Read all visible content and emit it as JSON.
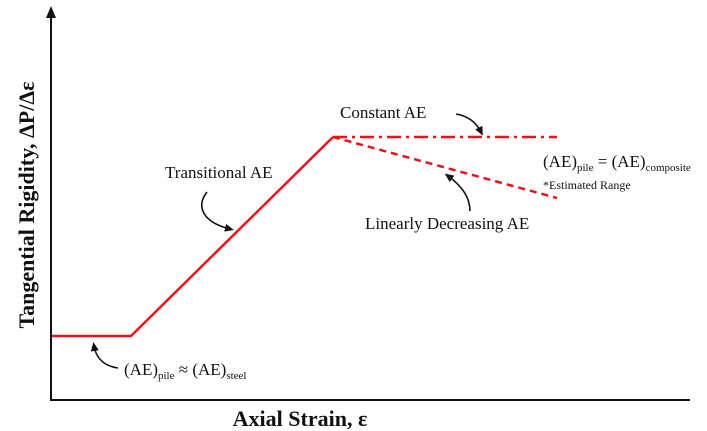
{
  "axes": {
    "x_title": "Axial Strain, ε",
    "y_title": "Tangential Rigidity, ΔP/Δε"
  },
  "annotations": {
    "transitional": "Transitional AE",
    "constant": "Constant AE",
    "linearly_decreasing": "Linearly Decreasing AE",
    "estimated_range": "*Estimated Range"
  },
  "equations": {
    "right": {
      "a": "(AE)",
      "a_sub": "pile",
      "rel": " = ",
      "b": "(AE)",
      "b_sub": "composite"
    },
    "bottom": {
      "a": "(AE)",
      "a_sub": "pile",
      "rel": " ≈ ",
      "b": "(AE)",
      "b_sub": "steel"
    }
  },
  "colors": {
    "curve": "#e8141b",
    "axis": "#111111"
  }
}
